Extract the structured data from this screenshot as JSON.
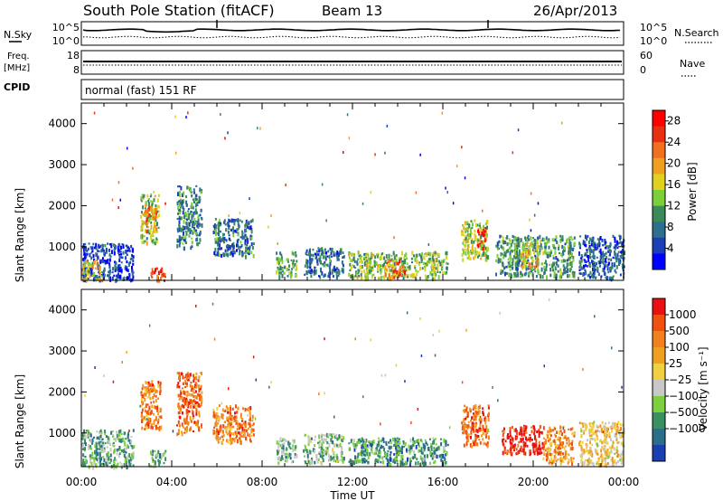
{
  "header": {
    "title": "South Pole Station (fitACF)",
    "beam": "Beam 13",
    "date": "26/Apr/2013"
  },
  "top_panels": {
    "nsky": {
      "label": "N.Sky",
      "ticks_left": [
        "10^5",
        "10^0"
      ],
      "label_right": "N.Search",
      "ticks_right": [
        "10^5",
        "10^0"
      ]
    },
    "freq": {
      "label_line1": "Freq.",
      "label_line2": "[MHz]",
      "ticks_left": [
        "18",
        "8"
      ],
      "label_right": "Nave",
      "ticks_right": [
        "60",
        "0"
      ]
    },
    "cpid": {
      "label": "CPID",
      "text": "normal (fast) 151 RF"
    }
  },
  "chart_data": [
    {
      "type": "heatmap",
      "name": "power",
      "ylabel": "Slant Range [km]",
      "ylim": [
        180,
        4500
      ],
      "yticks": [
        1000,
        2000,
        3000,
        4000
      ],
      "xlim": [
        0,
        24
      ],
      "xtick_labels": [
        "00:00",
        "04:00",
        "08:00",
        "12:00",
        "16:00",
        "20:00",
        "00:00"
      ],
      "colorbar": {
        "label": "Power [dB]",
        "range": [
          0,
          30
        ],
        "ticks": [
          4,
          8,
          12,
          16,
          20,
          24,
          28
        ],
        "colors": [
          "#0000ff",
          "#1c3fb8",
          "#2e6e8e",
          "#3a8a5a",
          "#7ccf3a",
          "#e0d020",
          "#f0a020",
          "#f07020",
          "#e83010",
          "#ff0000"
        ]
      },
      "features": [
        {
          "t0": 0.0,
          "t1": 2.3,
          "r0": 200,
          "r1": 1100,
          "level": 0.15
        },
        {
          "t0": 0.0,
          "t1": 0.9,
          "r0": 200,
          "r1": 700,
          "level": 0.55
        },
        {
          "t0": 2.6,
          "t1": 3.4,
          "r0": 1100,
          "r1": 2300,
          "level": 0.45
        },
        {
          "t0": 2.8,
          "t1": 3.3,
          "r0": 1400,
          "r1": 2000,
          "level": 0.7
        },
        {
          "t0": 3.0,
          "t1": 3.7,
          "r0": 200,
          "r1": 500,
          "level": 0.85
        },
        {
          "t0": 4.2,
          "t1": 5.3,
          "r0": 1000,
          "r1": 2500,
          "level": 0.3
        },
        {
          "t0": 5.8,
          "t1": 7.6,
          "r0": 800,
          "r1": 1700,
          "level": 0.25
        },
        {
          "t0": 8.6,
          "t1": 9.5,
          "r0": 300,
          "r1": 900,
          "level": 0.4
        },
        {
          "t0": 9.8,
          "t1": 11.6,
          "r0": 300,
          "r1": 1000,
          "level": 0.25
        },
        {
          "t0": 11.8,
          "t1": 16.2,
          "r0": 250,
          "r1": 900,
          "level": 0.45
        },
        {
          "t0": 13.4,
          "t1": 14.3,
          "r0": 250,
          "r1": 700,
          "level": 0.75
        },
        {
          "t0": 16.8,
          "t1": 18.0,
          "r0": 700,
          "r1": 1700,
          "level": 0.5
        },
        {
          "t0": 17.5,
          "t1": 17.9,
          "r0": 1000,
          "r1": 1500,
          "level": 0.9
        },
        {
          "t0": 18.3,
          "t1": 21.8,
          "r0": 300,
          "r1": 1300,
          "level": 0.35
        },
        {
          "t0": 19.4,
          "t1": 20.2,
          "r0": 500,
          "r1": 1100,
          "level": 0.6
        },
        {
          "t0": 22.0,
          "t1": 24.0,
          "r0": 250,
          "r1": 1300,
          "level": 0.2
        }
      ]
    },
    {
      "type": "heatmap",
      "name": "velocity",
      "ylabel": "Slant Range [km]",
      "ylim": [
        180,
        4500
      ],
      "yticks": [
        1000,
        2000,
        3000,
        4000
      ],
      "xlim": [
        0,
        24
      ],
      "xtick_labels": [
        "00:00",
        "04:00",
        "08:00",
        "12:00",
        "16:00",
        "20:00",
        "00:00"
      ],
      "xlabel": "Time UT",
      "colorbar": {
        "label": "Velocity [m s⁻¹]",
        "tick_labels": [
          "1000",
          "500",
          "100",
          "25",
          "−25",
          "−100",
          "−500",
          "−1000"
        ],
        "colors": [
          "#1a3fb0",
          "#2a6e88",
          "#3a9060",
          "#7cd040",
          "#c8c8c8",
          "#f0d040",
          "#f0a020",
          "#f08020",
          "#f05010",
          "#e81010"
        ]
      },
      "features": [
        {
          "t0": 0.0,
          "t1": 2.3,
          "r0": 200,
          "r1": 1100,
          "level": 0.3
        },
        {
          "t0": 2.6,
          "t1": 3.5,
          "r0": 1100,
          "r1": 2300,
          "level": 0.75
        },
        {
          "t0": 3.0,
          "t1": 3.7,
          "r0": 200,
          "r1": 600,
          "level": 0.25
        },
        {
          "t0": 4.2,
          "t1": 5.3,
          "r0": 1000,
          "r1": 2500,
          "level": 0.8
        },
        {
          "t0": 5.8,
          "t1": 7.6,
          "r0": 800,
          "r1": 1700,
          "level": 0.75
        },
        {
          "t0": 8.6,
          "t1": 9.5,
          "r0": 300,
          "r1": 900,
          "level": 0.3
        },
        {
          "t0": 9.8,
          "t1": 11.6,
          "r0": 300,
          "r1": 1000,
          "level": 0.35
        },
        {
          "t0": 11.8,
          "t1": 16.2,
          "r0": 250,
          "r1": 900,
          "level": 0.25
        },
        {
          "t0": 16.8,
          "t1": 18.0,
          "r0": 700,
          "r1": 1700,
          "level": 0.78
        },
        {
          "t0": 18.6,
          "t1": 20.4,
          "r0": 500,
          "r1": 1200,
          "level": 0.95
        },
        {
          "t0": 20.4,
          "t1": 21.8,
          "r0": 300,
          "r1": 1200,
          "level": 0.7
        },
        {
          "t0": 22.0,
          "t1": 24.0,
          "r0": 250,
          "r1": 1300,
          "level": 0.55
        }
      ]
    }
  ]
}
